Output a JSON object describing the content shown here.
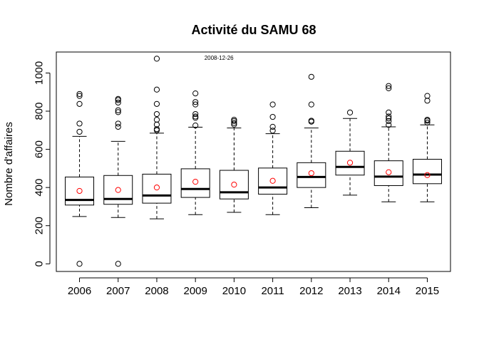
{
  "chart_data": {
    "type": "boxplot",
    "title": "Activité du SAMU 68",
    "ylabel": "Nombre d'affaires",
    "xlabel": "",
    "ylim": [
      -40,
      1110
    ],
    "yticks": [
      0,
      200,
      400,
      600,
      800,
      1000
    ],
    "categories": [
      "2006",
      "2007",
      "2008",
      "2009",
      "2010",
      "2011",
      "2012",
      "2013",
      "2014",
      "2015"
    ],
    "boxes": [
      {
        "year": "2006",
        "whisker_low": 248,
        "q1": 308,
        "median": 335,
        "q3": 455,
        "whisker_high": 668,
        "mean": 382,
        "outliers": [
          0,
          692,
          735,
          838,
          880,
          890
        ]
      },
      {
        "year": "2007",
        "whisker_low": 243,
        "q1": 312,
        "median": 340,
        "q3": 463,
        "whisker_high": 642,
        "mean": 387,
        "outliers": [
          0,
          718,
          735,
          795,
          805,
          845,
          858,
          864
        ]
      },
      {
        "year": "2008",
        "whisker_low": 236,
        "q1": 318,
        "median": 358,
        "q3": 470,
        "whisker_high": 685,
        "mean": 400,
        "outliers": [
          700,
          706,
          730,
          755,
          785,
          838,
          913,
          1075
        ]
      },
      {
        "year": "2009",
        "whisker_low": 258,
        "q1": 348,
        "median": 392,
        "q3": 498,
        "whisker_high": 716,
        "mean": 430,
        "outliers": [
          725,
          765,
          772,
          785,
          835,
          848,
          893
        ]
      },
      {
        "year": "2010",
        "whisker_low": 270,
        "q1": 340,
        "median": 375,
        "q3": 490,
        "whisker_high": 712,
        "mean": 415,
        "outliers": [
          730,
          738,
          748,
          755
        ]
      },
      {
        "year": "2011",
        "whisker_low": 258,
        "q1": 365,
        "median": 400,
        "q3": 502,
        "whisker_high": 682,
        "mean": 435,
        "outliers": [
          698,
          718,
          770,
          835
        ]
      },
      {
        "year": "2012",
        "whisker_low": 294,
        "q1": 400,
        "median": 455,
        "q3": 530,
        "whisker_high": 712,
        "mean": 475,
        "outliers": [
          745,
          750,
          835,
          980
        ]
      },
      {
        "year": "2013",
        "whisker_low": 360,
        "q1": 465,
        "median": 508,
        "q3": 590,
        "whisker_high": 762,
        "mean": 530,
        "outliers": [
          793
        ]
      },
      {
        "year": "2014",
        "whisker_low": 325,
        "q1": 410,
        "median": 457,
        "q3": 540,
        "whisker_high": 718,
        "mean": 480,
        "outliers": [
          728,
          748,
          762,
          772,
          793,
          920,
          932
        ]
      },
      {
        "year": "2015",
        "whisker_low": 325,
        "q1": 420,
        "median": 468,
        "q3": 548,
        "whisker_high": 728,
        "mean": 465,
        "outliers": [
          740,
          750,
          755,
          855,
          880
        ]
      }
    ],
    "annotation": {
      "text": "2008-12-26",
      "x_category": "2009",
      "y": 1080
    },
    "colors": {
      "box": "#000000",
      "mean_marker": "#ff0000",
      "outlier": "#000000"
    },
    "grid": false,
    "legend": "none"
  }
}
